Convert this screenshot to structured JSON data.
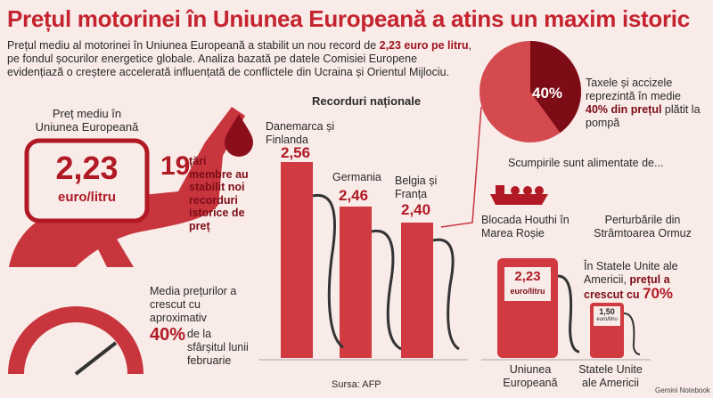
{
  "title": "Prețul motorinei în Uniunea Europeană a atins un maxim istoric",
  "intro": [
    "Prețul mediu al motorinei în Uniunea Europeană a stabilit un nou record de ",
    "2,23 euro pe litru",
    ", pe fondul șocurilor energetice globale. Analiza bazată pe datele Comisiei Europene evidențiază o creștere accelerată influențată de conflictele din Ucraina și Orientul Mijlociu."
  ],
  "eu_average": {
    "label": "Preț mediu în Uniunea Europeană",
    "price": "2,23",
    "unit": "euro/litru"
  },
  "records_count": {
    "number": "19",
    "text": "țări membre au stabilit noi recorduri istorice de preț"
  },
  "increase": {
    "before": "Media prețurilor a crescut cu aproximativ",
    "percent": "40%",
    "after": "de la sfârșitul lunii februarie"
  },
  "national_records": {
    "heading": "Recorduri naționale",
    "countries": [
      {
        "name": "Danemarca și Finlanda",
        "price": "2,56"
      },
      {
        "name": "Germania",
        "price": "2,46"
      },
      {
        "name": "Belgia și Franța",
        "price": "2,40"
      }
    ]
  },
  "taxes": {
    "share": 40,
    "share_label": "40%",
    "text_before": "Taxele și accizele reprezintă în medie",
    "text_bold": "40% din prețul",
    "text_after": "plătit la pompă"
  },
  "drivers": {
    "heading": "Scumpirile sunt alimentate de...",
    "items": [
      "Blocada Houthi în Marea Roșie",
      "Perturbările din Strâmtoarea Ormuz"
    ]
  },
  "comparison": {
    "us_text_before": "În Statele Unite ale Americii,",
    "us_text_bold": "prețul a crescut cu",
    "us_percent": "70%",
    "pumps": [
      {
        "price": "2,23",
        "unit": "euro/litru",
        "label": "Uniunea Europeană"
      },
      {
        "price": "1,50",
        "unit": "euro/litru",
        "label": "Statele Unite ale Americii"
      }
    ]
  },
  "source": "Sursa: AFP",
  "brand": "Gemini Notebook"
}
